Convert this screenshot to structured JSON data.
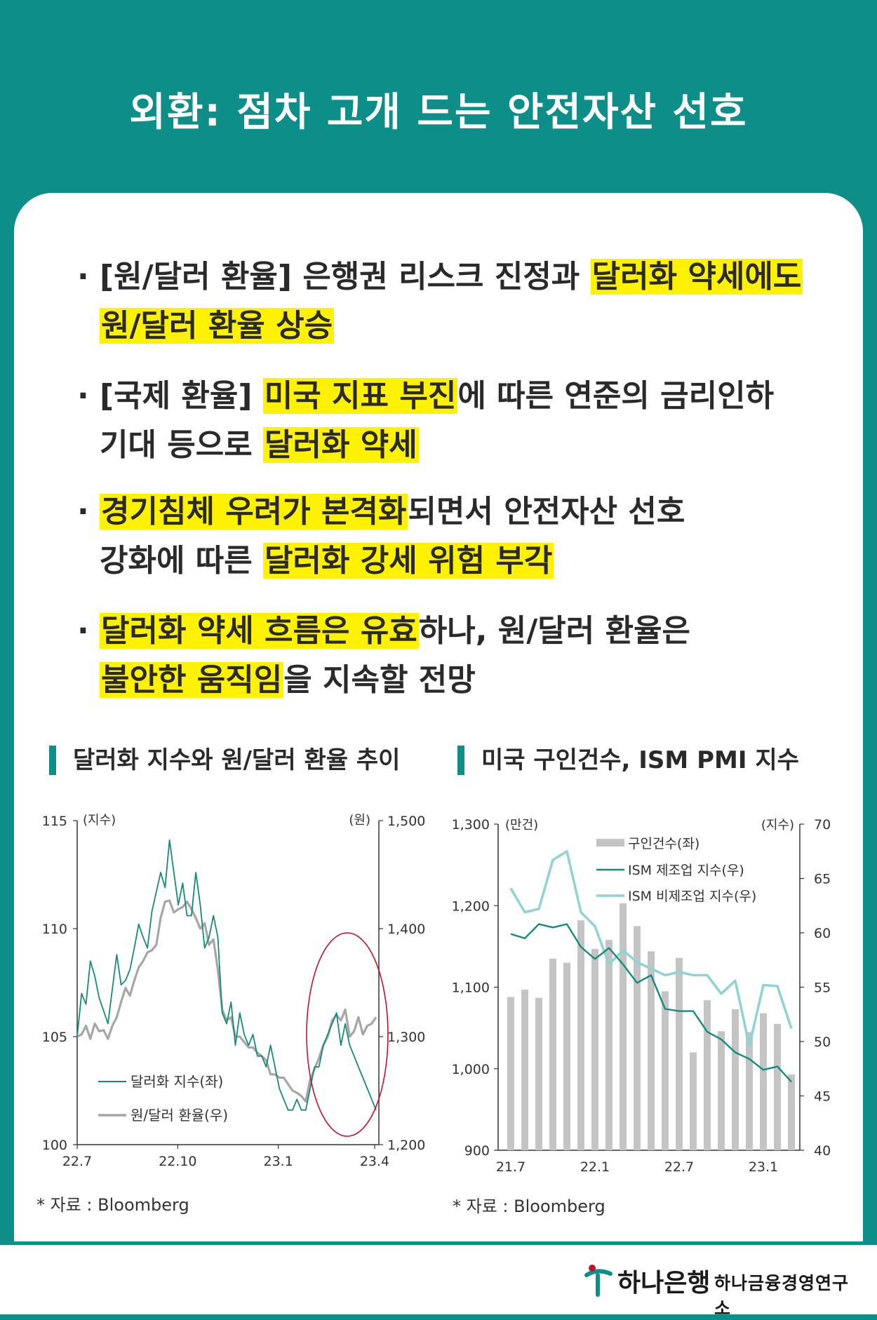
{
  "header": {
    "title": "외환: 점차 고개 드는 안전자산 선호"
  },
  "bullets": [
    {
      "line1": [
        {
          "t": "[원/달러 환율] 은행권 리스크 진정과 ",
          "h": false
        },
        {
          "t": "달러화 약세에도",
          "h": true
        }
      ],
      "line2": [
        {
          "t": "원/달러 환율 상승",
          "h": true
        }
      ]
    },
    {
      "line1": [
        {
          "t": "[국제 환율] ",
          "h": false
        },
        {
          "t": "미국 지표 부진",
          "h": true
        },
        {
          "t": "에 따른 연준의 금리인하",
          "h": false
        }
      ],
      "line2": [
        {
          "t": "기대 등으로 ",
          "h": false
        },
        {
          "t": "달러화 약세",
          "h": true
        }
      ]
    },
    {
      "line1": [
        {
          "t": "경기침체 우려가 본격화",
          "h": true
        },
        {
          "t": "되면서 안전자산 선호",
          "h": false
        }
      ],
      "line2": [
        {
          "t": "강화에 따른 ",
          "h": false
        },
        {
          "t": "달러화 강세 위험 부각",
          "h": true
        }
      ]
    },
    {
      "line1": [
        {
          "t": "달러화 약세 흐름은 유효",
          "h": true
        },
        {
          "t": "하나, 원/달러 환율은",
          "h": false
        }
      ],
      "line2": [
        {
          "t": "불안한 움직임",
          "h": true
        },
        {
          "t": "을 지속할 전망",
          "h": false
        }
      ]
    }
  ],
  "bullet_dot": "·",
  "colors": {
    "teal": "#0e8e89",
    "highlight": "#fff200",
    "dxy": "#178a7e",
    "krw": "#a6a6a6",
    "bars": "#c4c4c4",
    "ism_mfg": "#178a7e",
    "ism_svc": "#8fd3d3",
    "circle": "#c8102e"
  },
  "left_chart": {
    "heading": "달러화 지수와 원/달러 환율 추이",
    "source": "* 자료 : Bloomberg",
    "unit_left": "(지수)",
    "unit_right": "(원)",
    "legend_dxy": "달러화 지수(좌)",
    "legend_krw": "원/달러 환율(우)"
  },
  "right_chart": {
    "heading": "미국 구인건수, ISM PMI 지수",
    "source": "* 자료 : Bloomberg",
    "unit_left": "(만건)",
    "unit_right": "(지수)",
    "legend_bars": "구인건수(좌)",
    "legend_mfg": "ISM 제조업 지수(우)",
    "legend_svc": "ISM 비제조업 지수(우)"
  },
  "footer": {
    "bank": "하나은행",
    "institute": "하나금융경영연구소"
  },
  "chart_data": [
    {
      "type": "line",
      "title": "달러화 지수와 원/달러 환율 추이",
      "x_ticks": [
        "22.7",
        "22.10",
        "23.1",
        "23.4"
      ],
      "y_left": {
        "ticks": [
          "115",
          "110",
          "105",
          "100"
        ],
        "range": [
          100,
          115
        ]
      },
      "y_right": {
        "ticks": [
          "1,500",
          "1,400",
          "1,300",
          "1,200"
        ],
        "range": [
          1200,
          1500
        ]
      },
      "legend_placement": "lower-left",
      "series": [
        {
          "name": "달러화 지수(좌)",
          "axis": "left",
          "values": [
            105,
            107,
            106.5,
            108.5,
            107.8,
            106.8,
            106.2,
            105.6,
            107.2,
            108.8,
            107.4,
            107.6,
            108.1,
            109.1,
            110.2,
            109.6,
            109.1,
            110.8,
            111.7,
            112.6,
            111.9,
            114.1,
            112.6,
            111.1,
            112.1,
            110.6,
            110.6,
            112.6,
            111.1,
            109.1,
            109.6,
            110.6,
            109.6,
            106.1,
            105.6,
            106.6,
            104.6,
            106.1,
            105.1,
            104.6,
            105.1,
            104.1,
            104.1,
            103.6,
            104.6,
            103.6,
            102.6,
            102.1,
            101.6,
            101.6,
            102.1,
            101.6,
            101.6,
            102.6,
            103.6,
            103.6,
            104.6,
            105.1,
            105.6,
            106.1,
            104.6,
            105.6,
            104.6,
            104.1,
            103.6,
            103.1,
            102.6,
            102.1,
            101.6
          ]
        },
        {
          "name": "원/달러 환율(우)",
          "axis": "right",
          "values": [
            1300,
            1302,
            1310,
            1298,
            1312,
            1305,
            1306,
            1298,
            1310,
            1318,
            1332,
            1345,
            1338,
            1352,
            1364,
            1370,
            1378,
            1380,
            1385,
            1410,
            1425,
            1426,
            1415,
            1418,
            1420,
            1425,
            1418,
            1410,
            1400,
            1405,
            1385,
            1390,
            1362,
            1325,
            1315,
            1318,
            1300,
            1300,
            1295,
            1290,
            1290,
            1285,
            1282,
            1278,
            1265,
            1265,
            1262,
            1262,
            1256,
            1250,
            1248,
            1245,
            1240,
            1260,
            1270,
            1280,
            1292,
            1300,
            1315,
            1320,
            1315,
            1325,
            1300,
            1305,
            1318,
            1302,
            1310,
            1312,
            1318
          ]
        }
      ]
    },
    {
      "type": "bar",
      "title": "미국 구인건수, ISM PMI 지수",
      "x_ticks": [
        "21.7",
        "22.1",
        "22.7",
        "23.1"
      ],
      "categories": [
        "21.7",
        "21.8",
        "21.9",
        "21.10",
        "21.11",
        "21.12",
        "22.1",
        "22.2",
        "22.3",
        "22.4",
        "22.5",
        "22.6",
        "22.7",
        "22.8",
        "22.9",
        "22.10",
        "22.11",
        "22.12",
        "23.1",
        "23.2",
        "23.3"
      ],
      "y_left": {
        "ticks": [
          "1,300",
          "1,200",
          "1,100",
          "1,000",
          "900"
        ],
        "range": [
          900,
          1300
        ]
      },
      "y_right": {
        "ticks": [
          "70",
          "65",
          "60",
          "55",
          "50",
          "45",
          "40"
        ],
        "range": [
          40,
          70
        ]
      },
      "legend_placement": "top-right",
      "series": [
        {
          "name": "구인건수(좌)",
          "type": "bar",
          "axis": "left",
          "values": [
            1088,
            1097,
            1087,
            1135,
            1130,
            1182,
            1147,
            1158,
            1203,
            1175,
            1144,
            1095,
            1136,
            1020,
            1084,
            1046,
            1073,
            1045,
            1068,
            1055,
            993
          ]
        },
        {
          "name": "ISM 제조업 지수(우)",
          "type": "line",
          "axis": "right",
          "values": [
            59.9,
            59.5,
            60.8,
            60.5,
            60.8,
            58.7,
            57.6,
            58.6,
            57.1,
            55.4,
            56.1,
            53.0,
            52.8,
            52.8,
            50.9,
            50.2,
            49.0,
            48.4,
            47.4,
            47.7,
            46.3
          ]
        },
        {
          "name": "ISM 비제조업 지수(우)",
          "type": "line",
          "axis": "right",
          "values": [
            64.1,
            61.9,
            62.2,
            66.7,
            67.5,
            61.9,
            60.6,
            57.1,
            58.4,
            57.3,
            56.7,
            56.1,
            56.4,
            56.1,
            56.1,
            54.4,
            55.6,
            49.6,
            55.2,
            55.1,
            51.2
          ]
        }
      ]
    }
  ]
}
